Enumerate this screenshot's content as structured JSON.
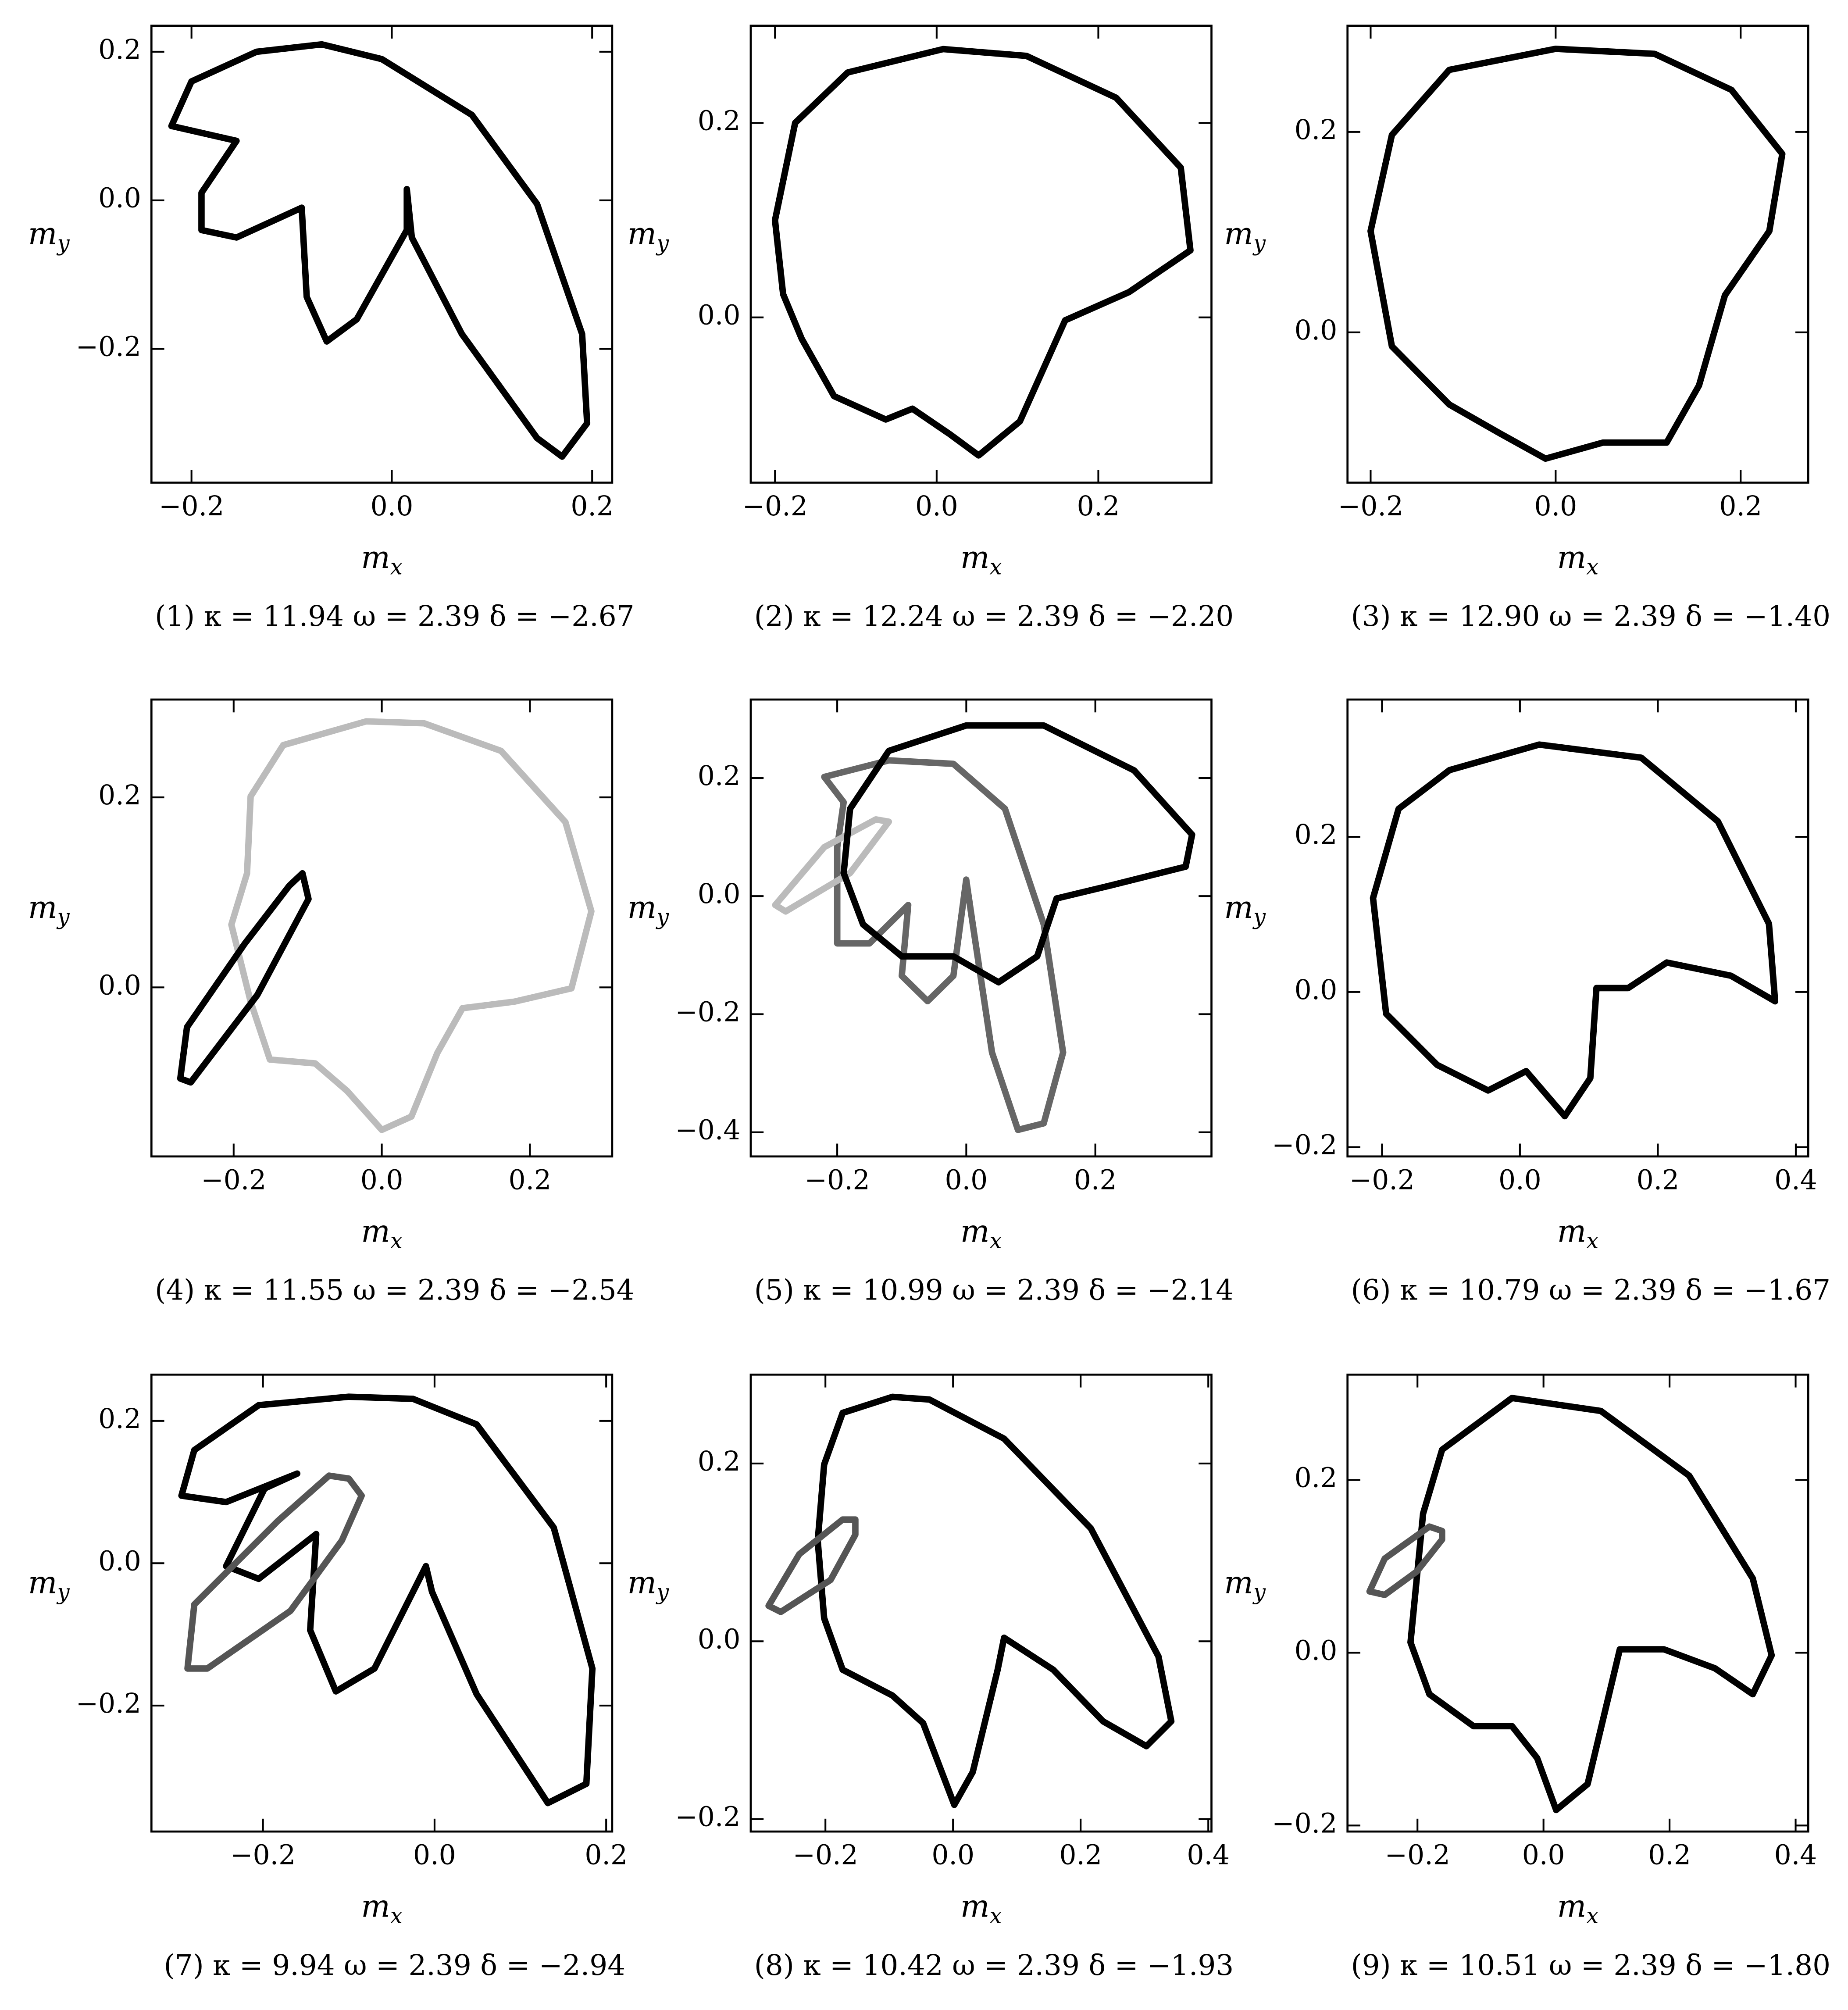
{
  "chart_data": [
    {
      "type": "line",
      "caption": "(1) κ = 11.94 ω = 2.39 δ = −2.67",
      "xlabel": {
        "text": "m",
        "sub": "x"
      },
      "ylabel": {
        "text": "m",
        "sub": "y"
      },
      "xlim": [
        -0.24,
        0.22
      ],
      "ylim": [
        -0.38,
        0.235
      ],
      "xticks": [
        {
          "value": -0.2,
          "label": "−0.2"
        },
        {
          "value": 0,
          "label": "0.0"
        },
        0.2
      ],
      "yticks": [
        {
          "value": -0.2,
          "label": "−0.2"
        },
        {
          "value": 0,
          "label": "0.0"
        },
        0.2
      ],
      "series": [
        {
          "color": "#000000",
          "x": [
            -0.07,
            -0.135,
            -0.2,
            -0.22,
            -0.155,
            -0.19,
            -0.19,
            -0.155,
            -0.09,
            -0.085,
            -0.065,
            -0.035,
            0.015,
            0.015,
            0.02,
            0.07,
            0.145,
            0.17,
            0.195,
            0.19,
            0.145,
            0.08,
            -0.01
          ],
          "values": [
            0.21,
            0.2,
            0.16,
            0.1,
            0.08,
            0.01,
            -0.04,
            -0.05,
            -0.01,
            -0.13,
            -0.19,
            -0.16,
            -0.04,
            0.015,
            -0.05,
            -0.18,
            -0.32,
            -0.345,
            -0.3,
            -0.18,
            -0.005,
            0.115,
            0.19
          ]
        }
      ]
    },
    {
      "type": "line",
      "caption": "(2) κ = 12.24 ω = 2.39 δ = −2.20",
      "xlabel": {
        "text": "m",
        "sub": "x"
      },
      "ylabel": {
        "text": "m",
        "sub": "y"
      },
      "xlim": [
        -0.23,
        0.34
      ],
      "ylim": [
        -0.17,
        0.3
      ],
      "xticks": [
        {
          "value": -0.2,
          "label": "−0.2"
        },
        {
          "value": 0,
          "label": "0.0"
        },
        0.2
      ],
      "yticks": [
        {
          "value": 0,
          "label": "0.0"
        },
        0.2
      ],
      "series": [
        {
          "color": "#000000",
          "x": [
            0.008,
            -0.11,
            -0.175,
            -0.2,
            -0.19,
            -0.167,
            -0.127,
            -0.063,
            -0.03,
            0.016,
            0.052,
            0.103,
            0.159,
            0.238,
            0.314,
            0.302,
            0.222,
            0.111
          ],
          "values": [
            0.276,
            0.252,
            0.2,
            0.1,
            0.024,
            -0.022,
            -0.081,
            -0.105,
            -0.094,
            -0.12,
            -0.142,
            -0.107,
            -0.003,
            0.026,
            0.069,
            0.154,
            0.226,
            0.269
          ]
        }
      ]
    },
    {
      "type": "line",
      "caption": "(3) κ = 12.90 ω = 2.39 δ = −1.40",
      "xlabel": {
        "text": "m",
        "sub": "x"
      },
      "ylabel": {
        "text": "m",
        "sub": "y"
      },
      "xlim": [
        -0.225,
        0.273
      ],
      "ylim": [
        -0.15,
        0.306
      ],
      "xticks": [
        {
          "value": -0.2,
          "label": "−0.2"
        },
        {
          "value": 0,
          "label": "0.0"
        },
        0.2
      ],
      "yticks": [
        {
          "value": 0,
          "label": "0.0"
        },
        0.2
      ],
      "series": [
        {
          "color": "#000000",
          "x": [
            0,
            -0.115,
            -0.177,
            -0.2,
            -0.177,
            -0.115,
            -0.06,
            -0.011,
            0.051,
            0.12,
            0.155,
            0.183,
            0.231,
            0.245,
            0.19,
            0.107
          ],
          "values": [
            0.283,
            0.262,
            0.197,
            0.101,
            -0.014,
            -0.072,
            -0.101,
            -0.126,
            -0.11,
            -0.11,
            -0.053,
            0.037,
            0.101,
            0.178,
            0.242,
            0.278
          ]
        }
      ]
    },
    {
      "type": "line",
      "caption": "(4) κ = 11.55 ω = 2.39 δ = −2.54",
      "xlabel": {
        "text": "m",
        "sub": "x"
      },
      "ylabel": {
        "text": "m",
        "sub": "y"
      },
      "xlim": [
        -0.311,
        0.311
      ],
      "ylim": [
        -0.178,
        0.303
      ],
      "xticks": [
        {
          "value": -0.2,
          "label": "−0.2"
        },
        {
          "value": 0,
          "label": "0.0"
        },
        0.2
      ],
      "yticks": [
        {
          "value": 0,
          "label": "0.0"
        },
        0.2
      ],
      "series": [
        {
          "color": "#bbbbbb",
          "x": [
            -0.021,
            -0.133,
            -0.177,
            -0.182,
            -0.203,
            -0.177,
            -0.151,
            -0.09,
            -0.047,
            0,
            0.04,
            0.075,
            0.109,
            0.179,
            0.256,
            0.283,
            0.248,
            0.161,
            0.057
          ],
          "values": [
            0.28,
            0.255,
            0.201,
            0.12,
            0.066,
            -0.015,
            -0.076,
            -0.08,
            -0.109,
            -0.15,
            -0.136,
            -0.069,
            -0.022,
            -0.015,
            -0.001,
            0.08,
            0.174,
            0.249,
            0.278
          ]
        },
        {
          "color": "#000000",
          "x": [
            -0.107,
            -0.099,
            -0.168,
            -0.258,
            -0.272,
            -0.263,
            -0.185,
            -0.125
          ],
          "values": [
            0.12,
            0.093,
            -0.008,
            -0.1,
            -0.096,
            -0.042,
            0.046,
            0.107
          ]
        }
      ]
    },
    {
      "type": "line",
      "caption": "(5) κ = 10.99 ω = 2.39 δ = −2.14",
      "xlabel": {
        "text": "m",
        "sub": "x"
      },
      "ylabel": {
        "text": "m",
        "sub": "y"
      },
      "xlim": [
        -0.334,
        0.38
      ],
      "ylim": [
        -0.441,
        0.333
      ],
      "xticks": [
        {
          "value": -0.2,
          "label": "−0.2"
        },
        {
          "value": 0,
          "label": "0.0"
        },
        0.2
      ],
      "yticks": [
        {
          "value": -0.4,
          "label": "−0.4"
        },
        {
          "value": -0.2,
          "label": "−0.2"
        },
        {
          "value": 0,
          "label": "0.0"
        },
        0.2
      ],
      "series": [
        {
          "color": "#666666",
          "x": [
            -0.12,
            -0.22,
            -0.19,
            -0.2,
            -0.2,
            -0.15,
            -0.09,
            -0.1,
            -0.06,
            -0.02,
            0,
            0.01,
            0.04,
            0.08,
            0.12,
            0.15,
            0.12,
            0.06,
            -0.02
          ],
          "values": [
            0.23,
            0.202,
            0.159,
            0.083,
            -0.08,
            -0.08,
            -0.015,
            -0.135,
            -0.178,
            -0.135,
            0.028,
            -0.048,
            -0.265,
            -0.396,
            -0.385,
            -0.265,
            -0.048,
            0.148,
            0.224
          ]
        },
        {
          "color": "#bbbbbb",
          "x": [
            -0.12,
            -0.14,
            -0.22,
            -0.296,
            -0.28,
            -0.18
          ],
          "values": [
            0.126,
            0.13,
            0.083,
            -0.015,
            -0.026,
            0.039
          ]
        },
        {
          "color": "#000000",
          "x": [
            0,
            -0.12,
            -0.18,
            -0.19,
            -0.16,
            -0.1,
            -0.02,
            0.05,
            0.11,
            0.14,
            0.22,
            0.34,
            0.35,
            0.26,
            0.12
          ],
          "values": [
            0.289,
            0.246,
            0.148,
            0.039,
            -0.048,
            -0.102,
            -0.102,
            -0.146,
            -0.102,
            -0.004,
            0.017,
            0.05,
            0.104,
            0.213,
            0.289
          ]
        }
      ]
    },
    {
      "type": "line",
      "caption": "(6) κ = 10.79 ω = 2.39 δ = −1.67",
      "xlabel": {
        "text": "m",
        "sub": "x"
      },
      "ylabel": {
        "text": "m",
        "sub": "y"
      },
      "xlim": [
        -0.25,
        0.418
      ],
      "ylim": [
        -0.212,
        0.377
      ],
      "xticks": [
        {
          "value": -0.2,
          "label": "−0.2"
        },
        {
          "value": 0,
          "label": "0.0"
        },
        0.2,
        0.4
      ],
      "yticks": [
        {
          "value": -0.2,
          "label": "−0.2"
        },
        {
          "value": 0,
          "label": "0.0"
        },
        0.2
      ],
      "series": [
        {
          "color": "#000000",
          "x": [
            -0.176,
            -0.213,
            -0.194,
            -0.12,
            -0.046,
            0.009,
            0.065,
            0.102,
            0.111,
            0.157,
            0.213,
            0.306,
            0.37,
            0.361,
            0.287,
            0.176,
            0.028,
            -0.102
          ],
          "values": [
            0.236,
            0.121,
            -0.028,
            -0.094,
            -0.127,
            -0.102,
            -0.16,
            -0.111,
            0.005,
            0.005,
            0.038,
            0.021,
            -0.012,
            0.088,
            0.22,
            0.302,
            0.319,
            0.286
          ]
        }
      ]
    },
    {
      "type": "line",
      "caption": "(7) κ = 9.94 ω = 2.39 δ = −2.94",
      "xlabel": {
        "text": "m",
        "sub": "x"
      },
      "ylabel": {
        "text": "m",
        "sub": "y"
      },
      "xlim": [
        -0.33,
        0.207
      ],
      "ylim": [
        -0.377,
        0.265
      ],
      "xticks": [
        {
          "value": -0.2,
          "label": "−0.2"
        },
        {
          "value": 0,
          "label": "0.0"
        },
        0.2
      ],
      "yticks": [
        {
          "value": -0.2,
          "label": "−0.2"
        },
        {
          "value": 0,
          "label": "0.0"
        },
        0.2
      ],
      "series": [
        {
          "color": "#000000",
          "x": [
            -0.1,
            -0.205,
            -0.28,
            -0.295,
            -0.243,
            -0.16,
            -0.198,
            -0.243,
            -0.205,
            -0.138,
            -0.145,
            -0.115,
            -0.07,
            -0.01,
            -0.003,
            0.049,
            0.132,
            0.177,
            0.184,
            0.139,
            0.049,
            -0.025
          ],
          "values": [
            0.234,
            0.222,
            0.159,
            0.095,
            0.086,
            0.126,
            0.105,
            -0.004,
            -0.022,
            0.041,
            -0.094,
            -0.18,
            -0.148,
            -0.004,
            -0.04,
            -0.184,
            -0.337,
            -0.31,
            -0.148,
            0.05,
            0.195,
            0.231
          ]
        },
        {
          "color": "#555555",
          "x": [
            -0.1,
            -0.123,
            -0.183,
            -0.28,
            -0.288,
            -0.265,
            -0.168,
            -0.108,
            -0.085
          ],
          "values": [
            0.119,
            0.123,
            0.059,
            -0.058,
            -0.148,
            -0.148,
            -0.067,
            0.032,
            0.095
          ]
        }
      ]
    },
    {
      "type": "line",
      "caption": "(8) κ = 10.42 ω = 2.39 δ = −1.93",
      "xlabel": {
        "text": "m",
        "sub": "x"
      },
      "ylabel": {
        "text": "m",
        "sub": "y"
      },
      "xlim": [
        -0.317,
        0.405
      ],
      "ylim": [
        -0.214,
        0.3
      ],
      "xticks": [
        {
          "value": -0.2,
          "label": "−0.2"
        },
        {
          "value": 0,
          "label": "0.0"
        },
        0.2,
        0.4
      ],
      "yticks": [
        {
          "value": -0.2,
          "label": "−0.2"
        },
        {
          "value": 0,
          "label": "0.0"
        },
        0.2
      ],
      "series": [
        {
          "color": "#000000",
          "x": [
            -0.095,
            -0.173,
            -0.202,
            -0.212,
            -0.202,
            -0.173,
            -0.095,
            -0.047,
            0.002,
            0.031,
            0.07,
            0.08,
            0.157,
            0.235,
            0.303,
            0.342,
            0.322,
            0.216,
            0.08,
            -0.037
          ],
          "values": [
            0.275,
            0.257,
            0.199,
            0.113,
            0.026,
            -0.032,
            -0.061,
            -0.092,
            -0.184,
            -0.147,
            -0.032,
            0.004,
            -0.032,
            -0.09,
            -0.118,
            -0.09,
            -0.017,
            0.127,
            0.228,
            0.272
          ]
        },
        {
          "color": "#555555",
          "x": [
            -0.153,
            -0.173,
            -0.241,
            -0.289,
            -0.27,
            -0.192,
            -0.153
          ],
          "values": [
            0.137,
            0.137,
            0.098,
            0.04,
            0.033,
            0.069,
            0.12
          ]
        }
      ]
    },
    {
      "type": "line",
      "caption": "(9) κ = 10.51 ω = 2.39 δ = −1.80",
      "xlabel": {
        "text": "m",
        "sub": "x"
      },
      "ylabel": {
        "text": "m",
        "sub": "y"
      },
      "xlim": [
        -0.311,
        0.42
      ],
      "ylim": [
        -0.207,
        0.322
      ],
      "xticks": [
        {
          "value": -0.2,
          "label": "−0.2"
        },
        {
          "value": 0,
          "label": "0.0"
        },
        0.2,
        0.4
      ],
      "yticks": [
        {
          "value": -0.2,
          "label": "−0.2"
        },
        {
          "value": 0,
          "label": "0.0"
        },
        0.2
      ],
      "series": [
        {
          "color": "#000000",
          "x": [
            -0.05,
            -0.161,
            -0.191,
            -0.211,
            -0.181,
            -0.111,
            -0.05,
            -0.01,
            0.02,
            0.07,
            0.121,
            0.191,
            0.272,
            0.332,
            0.362,
            0.332,
            0.231,
            0.091
          ],
          "values": [
            0.295,
            0.235,
            0.161,
            0.012,
            -0.048,
            -0.085,
            -0.085,
            -0.122,
            -0.182,
            -0.152,
            0.004,
            0.004,
            -0.018,
            -0.048,
            -0.003,
            0.086,
            0.205,
            0.28
          ]
        },
        {
          "color": "#555555",
          "x": [
            -0.161,
            -0.181,
            -0.252,
            -0.276,
            -0.252,
            -0.201,
            -0.161
          ],
          "values": [
            0.141,
            0.146,
            0.109,
            0.071,
            0.067,
            0.094,
            0.131
          ]
        }
      ]
    }
  ]
}
